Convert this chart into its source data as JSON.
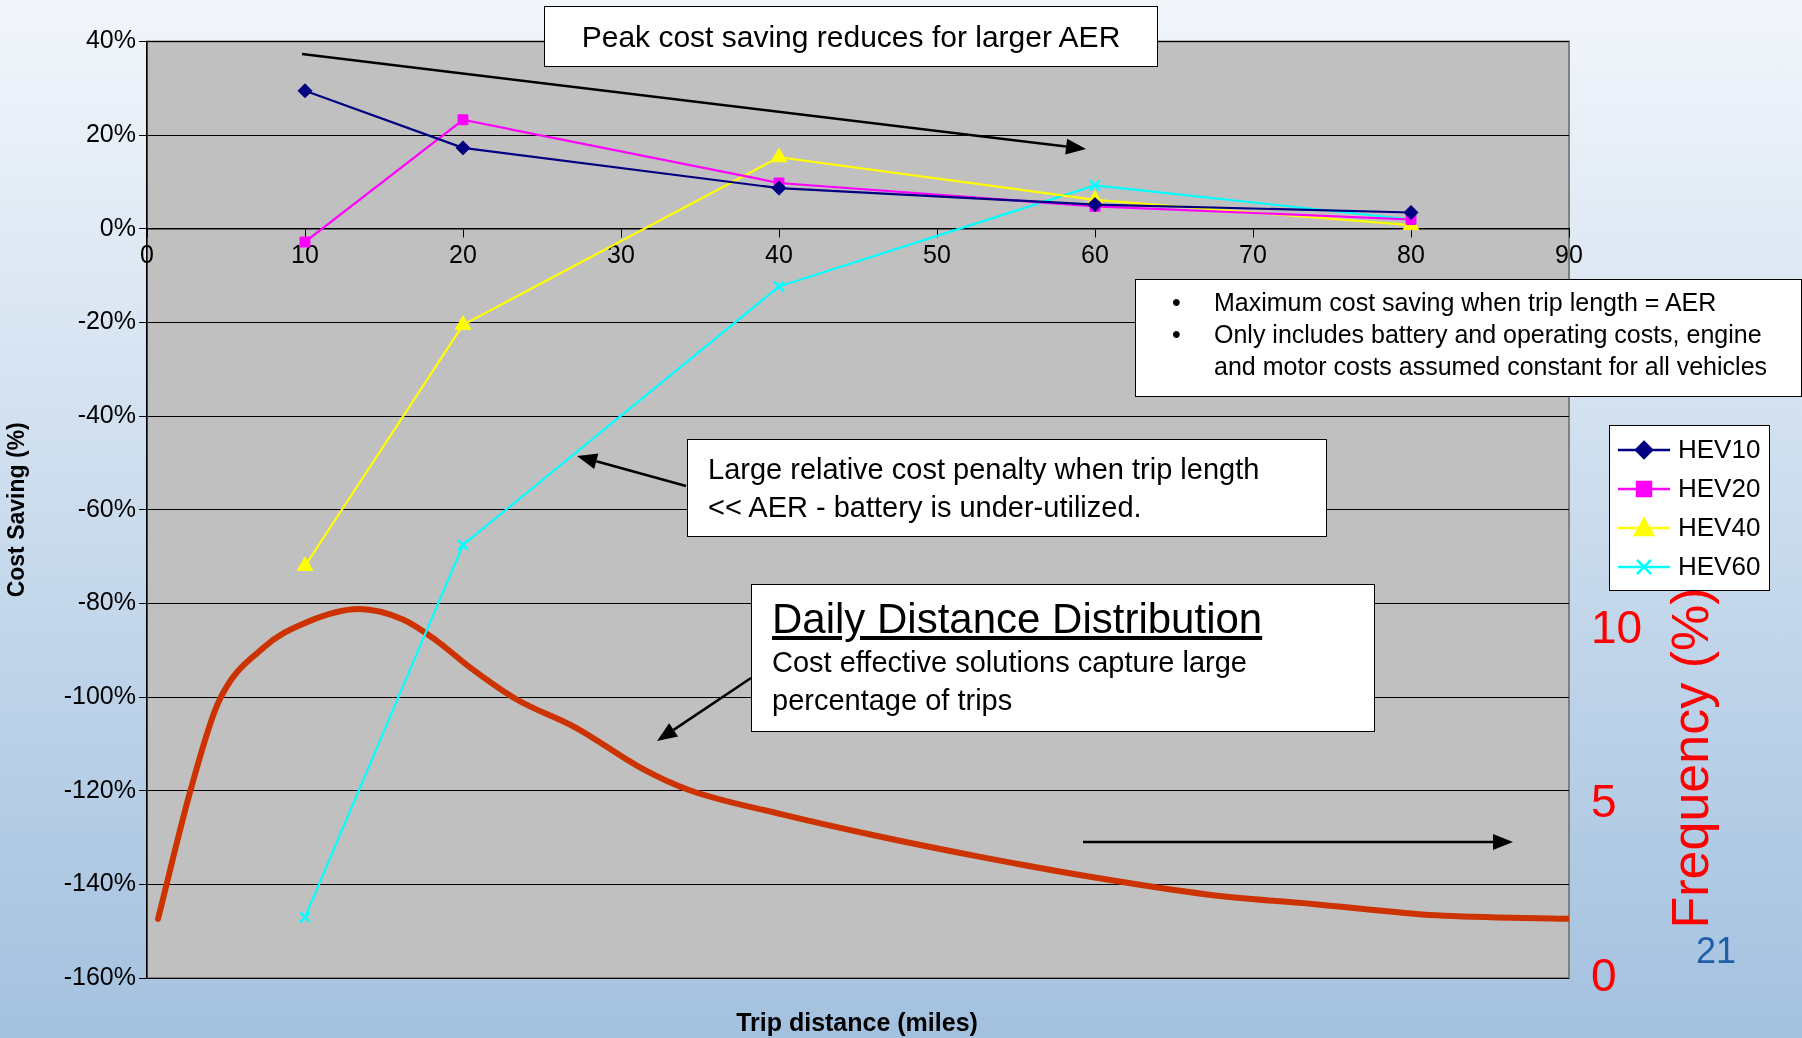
{
  "chart_data": {
    "type": "line",
    "xlabel": "Trip distance (miles)",
    "ylabel": "Cost Saving (%)",
    "y2label": "Frequency (%)",
    "xlim": [
      0,
      90
    ],
    "xticks": [
      0,
      10,
      20,
      30,
      40,
      50,
      60,
      70,
      80,
      90
    ],
    "ylim": [
      -160,
      40
    ],
    "yticks": [
      {
        "value": 40,
        "label": "40%"
      },
      {
        "value": 20,
        "label": "20%"
      },
      {
        "value": 0,
        "label": "0%"
      },
      {
        "value": -20,
        "label": "-20%"
      },
      {
        "value": -40,
        "label": "-40%"
      },
      {
        "value": -60,
        "label": "-60%"
      },
      {
        "value": -80,
        "label": "-80%"
      },
      {
        "value": -100,
        "label": "-100%"
      },
      {
        "value": -120,
        "label": "-120%"
      },
      {
        "value": -140,
        "label": "-140%"
      },
      {
        "value": -160,
        "label": "-160%"
      }
    ],
    "y2lim": [
      0,
      26.9
    ],
    "y2ticks": [
      0,
      5,
      10
    ],
    "grid": "y",
    "legend": "right",
    "series": [
      {
        "name": "HEV10",
        "color": "#000080",
        "marker": "diamond",
        "x": [
          10,
          20,
          40,
          60,
          80
        ],
        "values": [
          29.5,
          17.3,
          8.7,
          5.2,
          3.5
        ]
      },
      {
        "name": "HEV20",
        "color": "#ff00ff",
        "marker": "square",
        "x": [
          10,
          20,
          40,
          60,
          80
        ],
        "values": [
          -2.8,
          23.3,
          9.8,
          4.8,
          2
        ]
      },
      {
        "name": "HEV40",
        "color": "#ffff00",
        "marker": "triangle",
        "x": [
          10,
          20,
          40,
          60,
          80
        ],
        "values": [
          -72,
          -20.5,
          15.3,
          6.2,
          0.8
        ]
      },
      {
        "name": "HEV60",
        "color": "#00ffff",
        "marker": "cross",
        "x": [
          10,
          20,
          40,
          60,
          80
        ],
        "values": [
          -147,
          -67.5,
          -12.3,
          9.3,
          2
        ]
      },
      {
        "color": "#cc3300",
        "marker": "none",
        "axis": "y2",
        "x": [
          0.7,
          2.7,
          4.5,
          7.4,
          10,
          13.4,
          16.2,
          18.3,
          20.5,
          23.4,
          27.1,
          31.4,
          34.3,
          40.2,
          46,
          52.5,
          59.8,
          67.1,
          74.4,
          81.6,
          90
        ],
        "values": [
          1.7,
          5.3,
          7.9,
          9.5,
          10.2,
          10.6,
          10.3,
          9.7,
          8.9,
          8,
          7.2,
          6,
          5.4,
          4.7,
          4.1,
          3.5,
          2.9,
          2.4,
          2.1,
          1.8,
          1.7
        ]
      }
    ],
    "annotations": [
      "Peak cost saving reduces for larger AER",
      "•\tMaximum cost saving when trip length = AER",
      "•\tOnly includes battery and operating costs, engine and motor costs assumed constant for all vehicles",
      "Large relative cost penalty when trip length << AER - battery is under-utilized.",
      "Daily Distance Distribution",
      "Cost effective solutions capture large percentage of trips",
      "21"
    ]
  }
}
